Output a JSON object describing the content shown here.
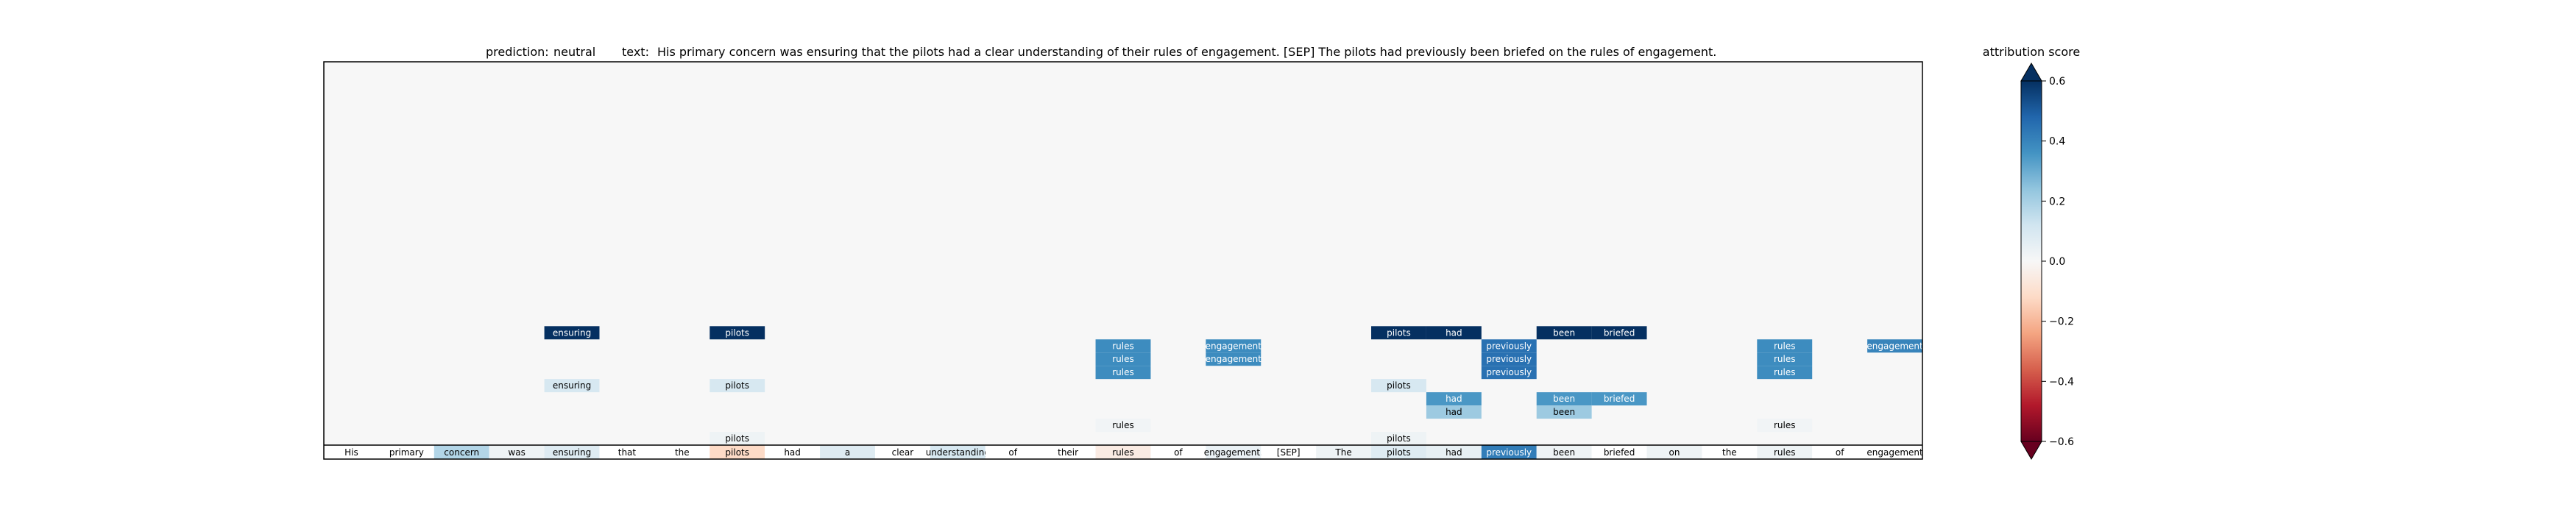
{
  "chart_data": {
    "type": "heatmap",
    "title": {
      "prediction_label": "prediction:",
      "prediction_value": "neutral",
      "text_label": "text:",
      "text_value": "His primary concern was ensuring that the pilots had a clear understanding of their rules of engagement. [SEP] The pilots had previously been briefed on the rules of engagement."
    },
    "tokens": [
      "His",
      "primary",
      "concern",
      "was",
      "ensuring",
      "that",
      "the",
      "pilots",
      "had",
      "a",
      "clear",
      "understanding",
      "of",
      "their",
      "rules",
      "of",
      "engagement.",
      "[SEP]",
      "The",
      "pilots",
      "had",
      "previously",
      "been",
      "briefed",
      "on",
      "the",
      "rules",
      "of",
      "engagement"
    ],
    "layers": 29,
    "token_scores": [
      0.0,
      0.0,
      0.18,
      0.03,
      0.08,
      0.0,
      0.0,
      -0.12,
      0.0,
      0.08,
      0.0,
      0.1,
      0.0,
      0.0,
      -0.05,
      0.0,
      0.04,
      0.0,
      0.03,
      0.08,
      0.05,
      0.42,
      0.03,
      0.0,
      0.03,
      0.0,
      0.03,
      0.0,
      0.0
    ],
    "cells": [
      {
        "layer": 8,
        "token": 4,
        "label": "ensuring",
        "score": 0.62
      },
      {
        "layer": 8,
        "token": 7,
        "label": "pilots",
        "score": 0.62
      },
      {
        "layer": 8,
        "token": 19,
        "label": "pilots",
        "score": 0.62
      },
      {
        "layer": 8,
        "token": 20,
        "label": "had",
        "score": 0.62
      },
      {
        "layer": 8,
        "token": 22,
        "label": "been",
        "score": 0.62
      },
      {
        "layer": 8,
        "token": 23,
        "label": "briefed",
        "score": 0.62
      },
      {
        "layer": 7,
        "token": 14,
        "label": "rules",
        "score": 0.38
      },
      {
        "layer": 7,
        "token": 16,
        "label": "engagement",
        "score": 0.38
      },
      {
        "layer": 7,
        "token": 21,
        "label": "previously",
        "score": 0.45
      },
      {
        "layer": 7,
        "token": 26,
        "label": "rules",
        "score": 0.38
      },
      {
        "layer": 7,
        "token": 28,
        "label": "engagement",
        "score": 0.4
      },
      {
        "layer": 6,
        "token": 14,
        "label": "rules",
        "score": 0.38
      },
      {
        "layer": 6,
        "token": 16,
        "label": "engagement",
        "score": 0.38
      },
      {
        "layer": 6,
        "token": 21,
        "label": "previously",
        "score": 0.45
      },
      {
        "layer": 6,
        "token": 26,
        "label": "rules",
        "score": 0.38
      },
      {
        "layer": 5,
        "token": 14,
        "label": "rules",
        "score": 0.38
      },
      {
        "layer": 5,
        "token": 21,
        "label": "previously",
        "score": 0.45
      },
      {
        "layer": 5,
        "token": 26,
        "label": "rules",
        "score": 0.38
      },
      {
        "layer": 4,
        "token": 4,
        "label": "ensuring",
        "score": 0.1
      },
      {
        "layer": 4,
        "token": 7,
        "label": "pilots",
        "score": 0.1
      },
      {
        "layer": 4,
        "token": 19,
        "label": "pilots",
        "score": 0.1
      },
      {
        "layer": 3,
        "token": 20,
        "label": "had",
        "score": 0.35
      },
      {
        "layer": 3,
        "token": 22,
        "label": "been",
        "score": 0.35
      },
      {
        "layer": 3,
        "token": 23,
        "label": "briefed",
        "score": 0.35
      },
      {
        "layer": 2,
        "token": 20,
        "label": "had",
        "score": 0.22
      },
      {
        "layer": 2,
        "token": 22,
        "label": "been",
        "score": 0.22
      },
      {
        "layer": 1,
        "token": 14,
        "label": "rules",
        "score": 0.02
      },
      {
        "layer": 1,
        "token": 26,
        "label": "rules",
        "score": 0.02
      },
      {
        "layer": 0,
        "token": 7,
        "label": "pilots",
        "score": 0.03
      },
      {
        "layer": 0,
        "token": 19,
        "label": "pilots",
        "score": 0.03
      }
    ],
    "background_score": 0.0,
    "colorbar": {
      "label": "attribution score",
      "range": [
        -0.6,
        0.6
      ],
      "ticks": [
        0.6,
        0.4,
        0.2,
        0.0,
        -0.2,
        -0.4,
        -0.6
      ],
      "tick_labels": [
        "0.6",
        "0.4",
        "0.2",
        "0.0",
        "−0.2",
        "−0.4",
        "−0.6"
      ],
      "colormap": "RdBu",
      "extend": "both"
    },
    "grid": false
  }
}
